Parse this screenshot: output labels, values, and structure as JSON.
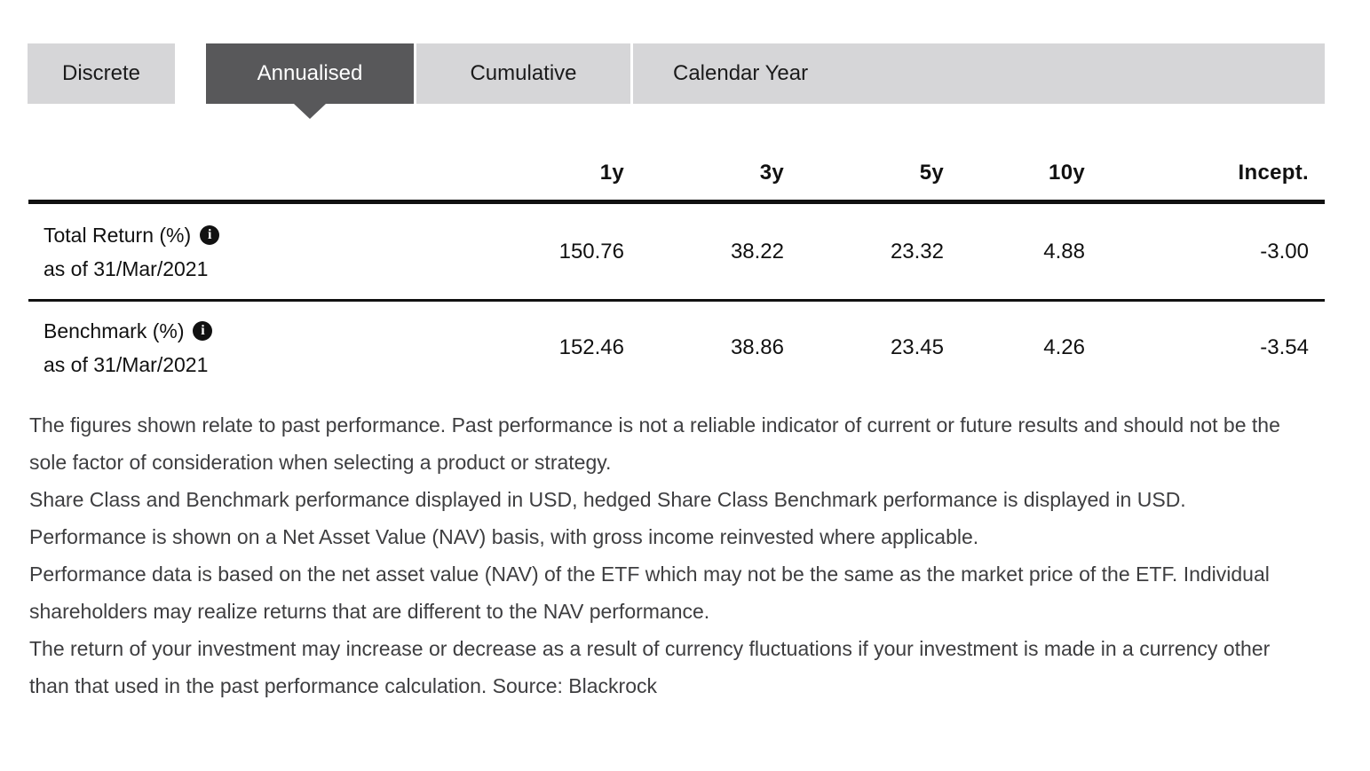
{
  "tabs": {
    "items": [
      {
        "label": "Discrete",
        "active": false
      },
      {
        "label": "Annualised",
        "active": true
      },
      {
        "label": "Cumulative",
        "active": false
      },
      {
        "label": "Calendar Year",
        "active": false
      }
    ]
  },
  "table": {
    "columns": [
      "1y",
      "3y",
      "5y",
      "10y",
      "Incept."
    ],
    "rows": [
      {
        "label": "Total Return (%)",
        "as_of": "as of 31/Mar/2021",
        "values": [
          "150.76",
          "38.22",
          "23.32",
          "4.88",
          "-3.00"
        ]
      },
      {
        "label": "Benchmark (%)",
        "as_of": "as of 31/Mar/2021",
        "values": [
          "152.46",
          "38.86",
          "23.45",
          "4.26",
          "-3.54"
        ]
      }
    ]
  },
  "icons": {
    "info_glyph": "i"
  },
  "disclaimer": {
    "paragraphs": [
      "The figures shown relate to past performance. Past performance is not a reliable indicator of current or future results and should not be the sole factor of consideration when selecting a product or strategy.",
      "Share Class and Benchmark performance displayed in USD, hedged Share Class Benchmark performance is displayed in USD.",
      "Performance is shown on a Net Asset Value (NAV) basis, with gross income reinvested where applicable.",
      "Performance data is based on the net asset value (NAV) of the ETF which may not be the same as the market price of the ETF. Individual shareholders may realize returns that are different to the NAV performance.",
      "The return of your investment may increase or decrease as a result of currency fluctuations if your investment is made in a currency other than that used in the past performance calculation. Source: Blackrock"
    ]
  },
  "colors": {
    "tab_inactive_bg": "#d6d6d8",
    "tab_active_bg": "#58585a",
    "tab_text": "#1b1b1b",
    "tab_active_text": "#ffffff",
    "table_text": "#111111",
    "rule": "#111111",
    "disclaimer_text": "#3e3e40",
    "page_bg": "#ffffff"
  }
}
